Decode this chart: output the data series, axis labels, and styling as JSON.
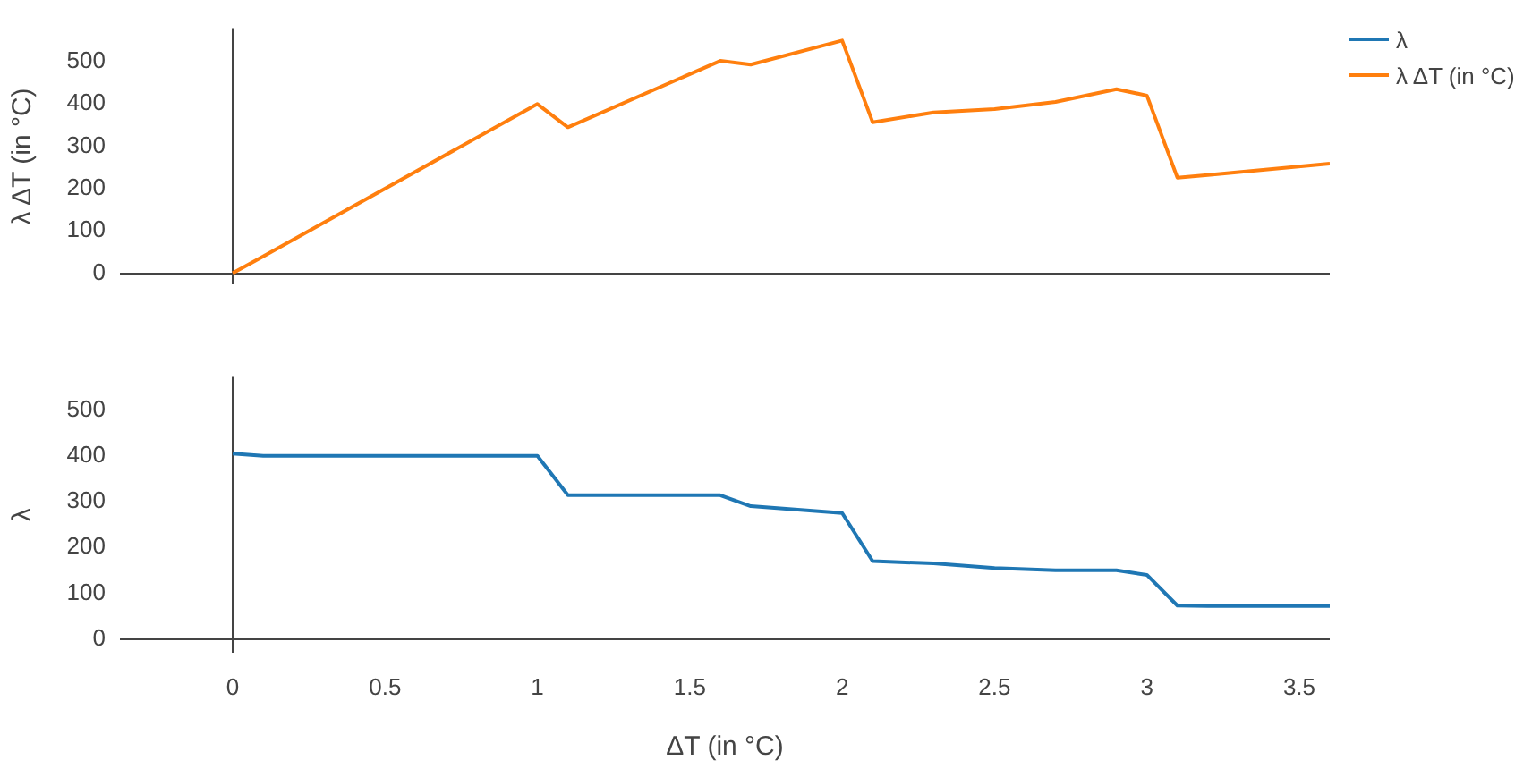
{
  "chart_data": [
    {
      "type": "line",
      "ylabel": "λ ΔT (in °C)",
      "x": [
        0,
        0.1,
        1,
        1.1,
        1.6,
        1.7,
        2,
        2.1,
        2.3,
        2.5,
        2.7,
        2.9,
        3,
        3.1,
        3.2,
        3.6
      ],
      "xlim": [
        -0.37,
        3.6
      ],
      "xticks": [
        0,
        0.5,
        1,
        1.5,
        2,
        2.5,
        3,
        3.5
      ],
      "ylim": [
        -27,
        579
      ],
      "yticks": [
        0,
        100,
        200,
        300,
        400,
        500
      ],
      "tick_labels": "y",
      "legend": "top right",
      "marker": "none",
      "series": [
        {
          "name": "λ ΔT (in °C)",
          "color": "#ff7f0e",
          "values": [
            0,
            40,
            400,
            345,
            502,
            493,
            550,
            357,
            380,
            388,
            405,
            435,
            420,
            226,
            232,
            259
          ]
        }
      ]
    },
    {
      "type": "line",
      "xlabel": "ΔT (in °C)",
      "ylabel": "λ",
      "x": [
        0,
        0.1,
        1,
        1.1,
        1.6,
        1.7,
        2,
        2.1,
        2.3,
        2.5,
        2.7,
        2.9,
        3,
        3.1,
        3.2,
        3.6
      ],
      "xlim": [
        -0.37,
        3.6
      ],
      "xticks": [
        0,
        0.5,
        1,
        1.5,
        2,
        2.5,
        3,
        3.5
      ],
      "ylim": [
        -30,
        572
      ],
      "yticks": [
        0,
        100,
        200,
        300,
        400,
        500
      ],
      "marker": "none",
      "series": [
        {
          "name": "λ",
          "color": "#1f77b4",
          "values": [
            405,
            400,
            400,
            314,
            314,
            290,
            275,
            170,
            165,
            155,
            150,
            150,
            140,
            73,
            72,
            72
          ]
        }
      ]
    }
  ]
}
